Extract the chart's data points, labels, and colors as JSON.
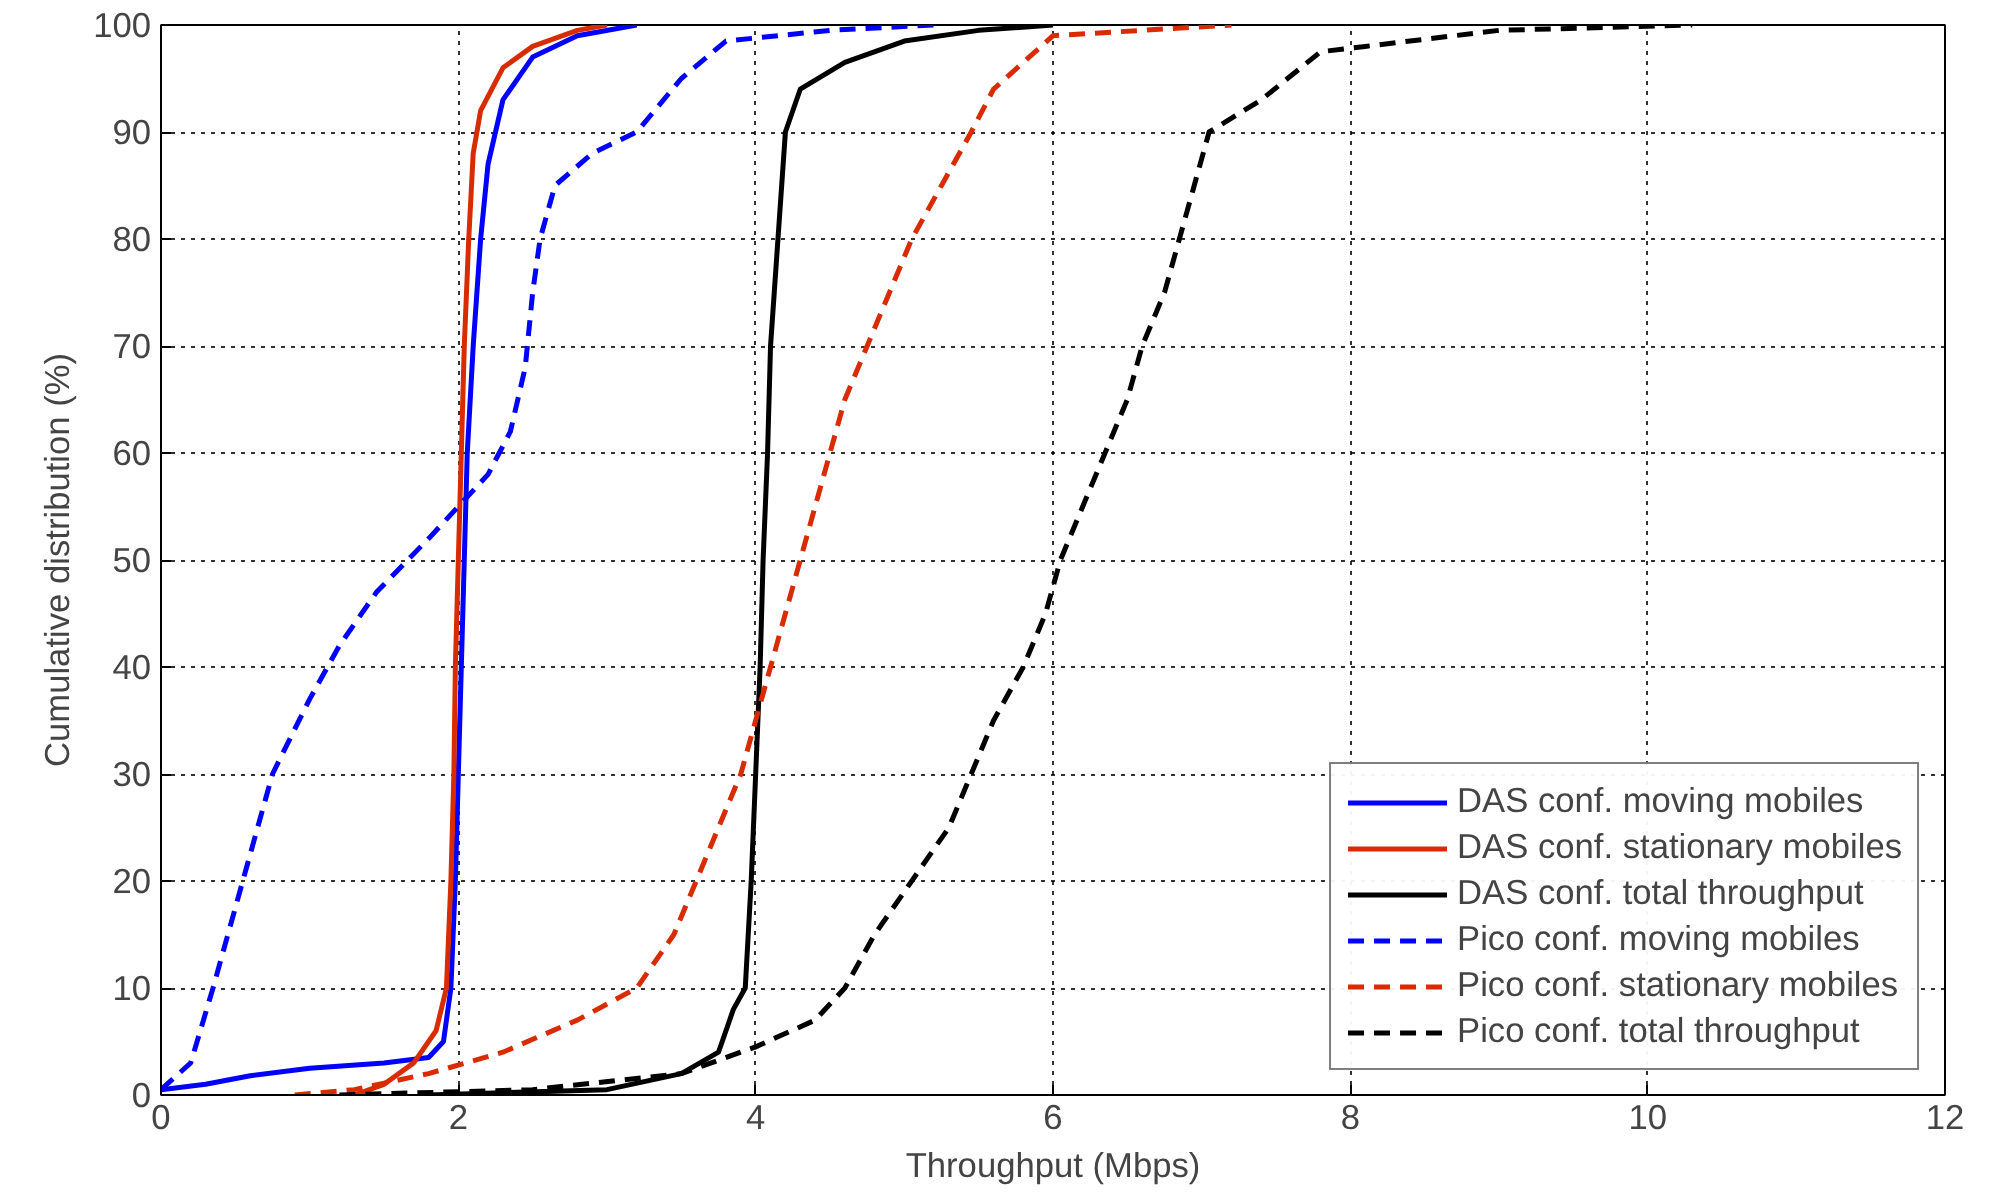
{
  "chart_data": {
    "type": "line",
    "xlabel": "Throughput (Mbps)",
    "ylabel": "Cumulative distribution (%)",
    "xlim": [
      0,
      12
    ],
    "ylim": [
      0,
      100
    ],
    "xticks": [
      0,
      2,
      4,
      6,
      8,
      10,
      12
    ],
    "yticks": [
      0,
      10,
      20,
      30,
      40,
      50,
      60,
      70,
      80,
      90,
      100
    ],
    "grid": true,
    "legend": "bottom right",
    "series": [
      {
        "name": "DAS conf. moving mobiles",
        "color": "#0000ff",
        "line_style": "solid",
        "x": [
          0,
          0.3,
          0.6,
          1.0,
          1.5,
          1.8,
          1.9,
          1.95,
          1.98,
          2.0,
          2.02,
          2.04,
          2.06,
          2.1,
          2.15,
          2.2,
          2.3,
          2.5,
          2.8,
          3.2
        ],
        "values": [
          0.5,
          1,
          1.8,
          2.5,
          3,
          3.5,
          5,
          10,
          20,
          30,
          40,
          50,
          60,
          70,
          80,
          87,
          93,
          97,
          99,
          100
        ]
      },
      {
        "name": "DAS conf. stationary mobiles",
        "color": "#d92b00",
        "line_style": "solid",
        "x": [
          1.3,
          1.5,
          1.7,
          1.85,
          1.92,
          1.95,
          1.97,
          1.98,
          2.0,
          2.02,
          2.04,
          2.07,
          2.1,
          2.15,
          2.3,
          2.5,
          2.8,
          3.0
        ],
        "values": [
          0,
          1,
          3,
          6,
          10,
          20,
          30,
          40,
          50,
          60,
          70,
          80,
          88,
          92,
          96,
          98,
          99.5,
          100
        ]
      },
      {
        "name": "DAS conf. total throughput",
        "color": "#000000",
        "line_style": "solid",
        "x": [
          1.8,
          3.0,
          3.5,
          3.75,
          3.85,
          3.93,
          3.97,
          4.0,
          4.03,
          4.05,
          4.08,
          4.1,
          4.15,
          4.2,
          4.3,
          4.6,
          5,
          5.5,
          6
        ],
        "values": [
          0,
          0.5,
          2,
          4,
          8,
          10,
          20,
          30,
          40,
          50,
          60,
          70,
          80,
          90,
          94,
          96.5,
          98.5,
          99.5,
          100
        ]
      },
      {
        "name": "Pico conf. moving mobiles",
        "color": "#0000ff",
        "line_style": "dashed",
        "x": [
          0,
          0.2,
          0.35,
          0.55,
          0.75,
          1.0,
          1.2,
          1.45,
          1.8,
          2.0,
          2.2,
          2.35,
          2.45,
          2.5,
          2.55,
          2.65,
          2.9,
          3.2,
          3.5,
          3.8,
          4.5,
          5.2
        ],
        "values": [
          0.5,
          3,
          10,
          20,
          30,
          37,
          42,
          47,
          52,
          55,
          58,
          62,
          68,
          75,
          80,
          85,
          88,
          90,
          95,
          98.5,
          99.5,
          100
        ]
      },
      {
        "name": "Pico conf. stationary mobiles",
        "color": "#d92b00",
        "line_style": "dashed",
        "x": [
          0.9,
          1.3,
          1.8,
          2.3,
          2.8,
          3.2,
          3.45,
          3.6,
          3.75,
          3.9,
          4.0,
          4.1,
          4.2,
          4.3,
          4.4,
          4.5,
          4.6,
          4.75,
          4.9,
          5.05,
          5.25,
          5.45,
          5.6,
          6.0,
          7.2
        ],
        "values": [
          0,
          0.5,
          2,
          4,
          7,
          10,
          15,
          20,
          25,
          30,
          35,
          40,
          45,
          50,
          55,
          60,
          65,
          70,
          75,
          80,
          85,
          90,
          94,
          99,
          100
        ]
      },
      {
        "name": "Pico conf. total throughput",
        "color": "#000000",
        "line_style": "dashed",
        "x": [
          1.2,
          2.5,
          3.5,
          4.0,
          4.4,
          4.6,
          4.8,
          5.05,
          5.3,
          5.45,
          5.6,
          5.8,
          5.95,
          6.05,
          6.2,
          6.35,
          6.5,
          6.6,
          6.75,
          6.85,
          6.95,
          7.05,
          7.4,
          7.8,
          8.1,
          9,
          10.3
        ],
        "values": [
          0,
          0.5,
          2,
          4.5,
          7,
          10,
          15,
          20,
          25,
          30,
          35,
          40,
          45,
          50,
          55,
          60,
          65,
          70,
          75,
          80,
          85,
          90,
          93,
          97.5,
          98,
          99.5,
          100
        ]
      }
    ]
  }
}
